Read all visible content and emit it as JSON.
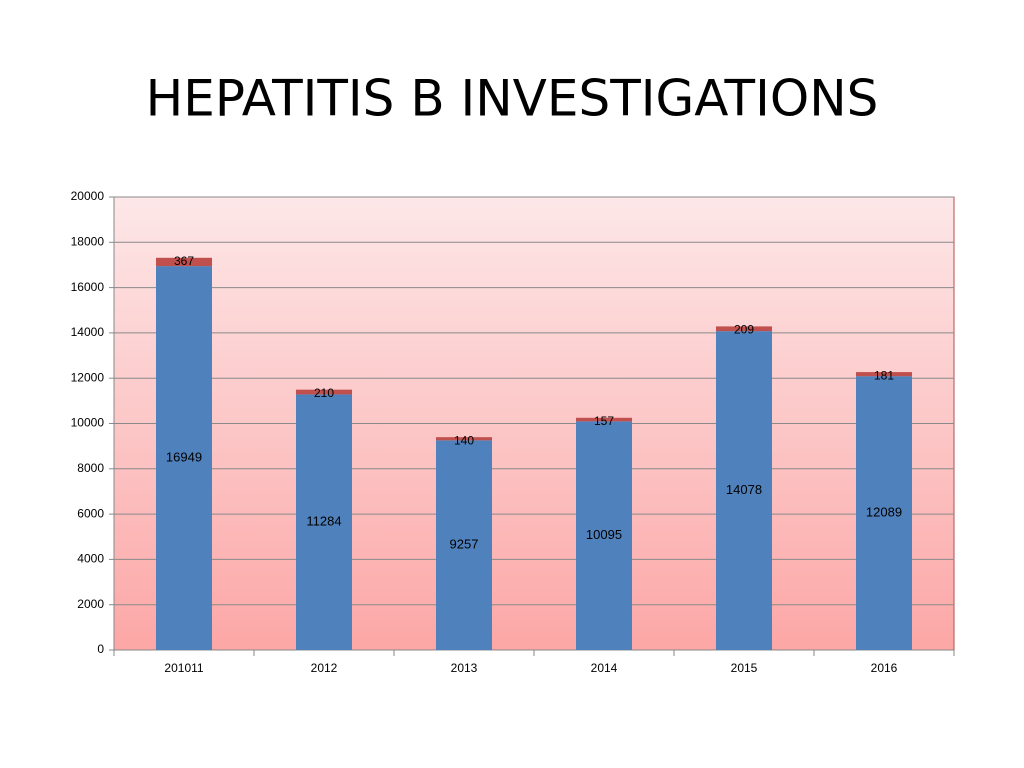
{
  "chart_data": {
    "type": "stacked_bar",
    "title": "HEPATITIS B INVESTIGATIONS",
    "categories": [
      "201011",
      "2012",
      "2013",
      "2014",
      "2015",
      "2016"
    ],
    "series": [
      {
        "color": "#4f81bd",
        "values": [
          16949,
          11284,
          9257,
          10095,
          14078,
          12089
        ]
      },
      {
        "color": "#c0504d",
        "values": [
          367,
          210,
          140,
          157,
          209,
          181
        ]
      }
    ],
    "ylim": [
      0,
      20000
    ],
    "yticks": [
      0,
      2000,
      4000,
      6000,
      8000,
      10000,
      12000,
      14000,
      16000,
      18000,
      20000
    ],
    "grid": true
  }
}
